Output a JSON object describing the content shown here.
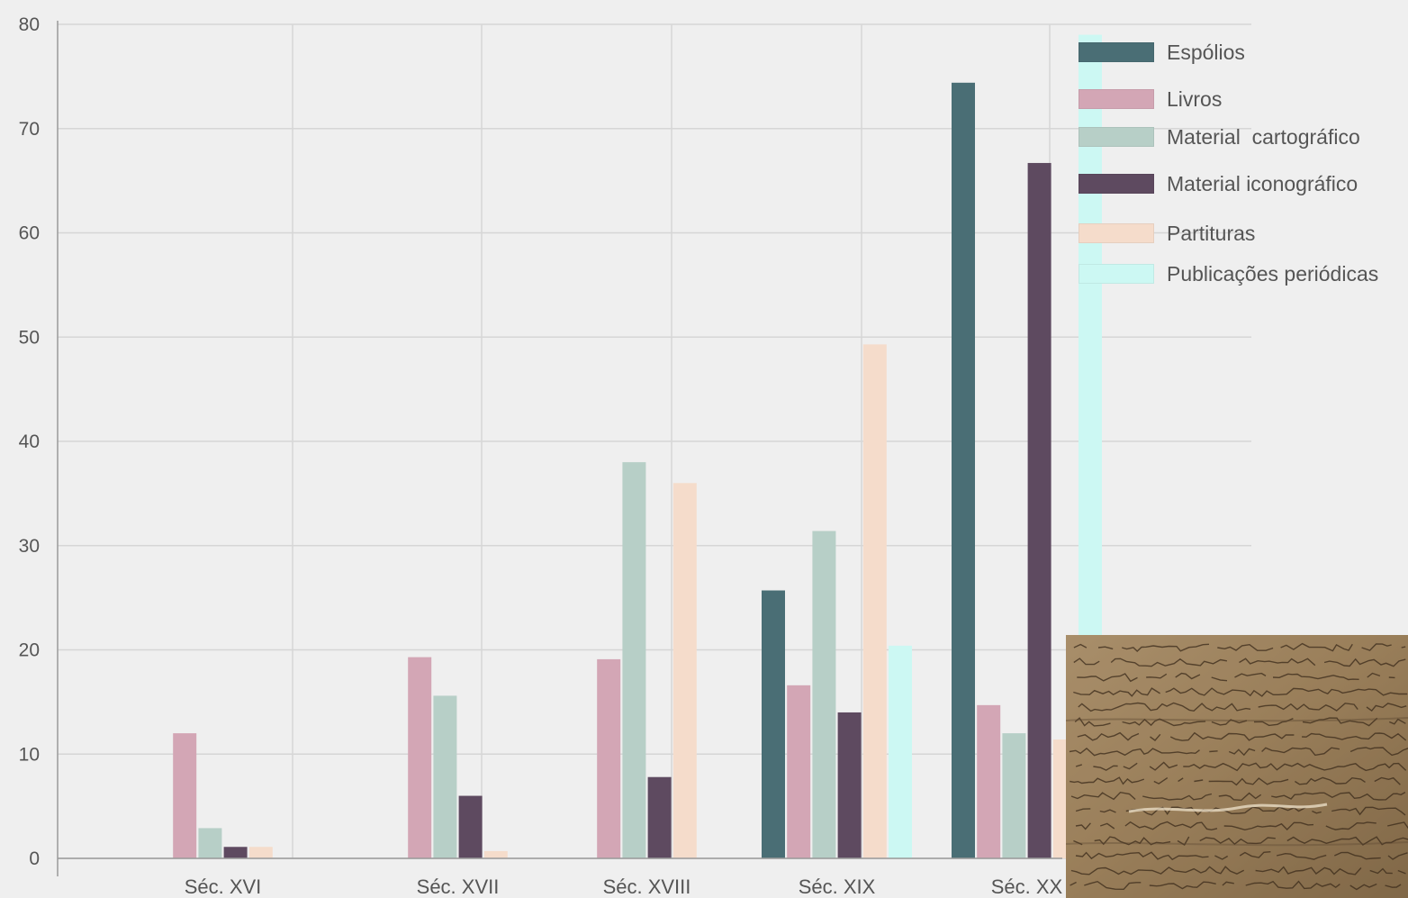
{
  "chart_data": {
    "type": "bar",
    "categories": [
      "Séc. XVI",
      "Séc. XVII",
      "Séc. XVIII",
      "Séc. XIX",
      "Séc. XX"
    ],
    "series": [
      {
        "name": "Espólios",
        "color": "#4a6e75",
        "values": [
          0,
          0,
          0,
          25.7,
          74.4
        ]
      },
      {
        "name": "Livros",
        "color": "#d3a6b5",
        "values": [
          12,
          19.3,
          19.1,
          16.6,
          14.7
        ]
      },
      {
        "name": "Material  cartográfico",
        "color": "#b7cfc7",
        "values": [
          2.9,
          15.6,
          38,
          31.4,
          12
        ]
      },
      {
        "name": "Material iconográfico",
        "color": "#5e4a60",
        "values": [
          1.1,
          6,
          7.8,
          14,
          66.7
        ]
      },
      {
        "name": "Partituras",
        "color": "#f5dccb",
        "values": [
          1.1,
          0.7,
          36,
          49.3,
          11.4
        ]
      },
      {
        "name": "Publicações periódicas",
        "color": "#ccf8f3",
        "values": [
          0,
          0,
          0,
          20.4,
          79
        ]
      }
    ],
    "ylim": [
      0,
      80
    ],
    "yticks": [
      0,
      10,
      20,
      30,
      40,
      50,
      60,
      70,
      80
    ],
    "grid": true,
    "legend_position": "top-right"
  }
}
